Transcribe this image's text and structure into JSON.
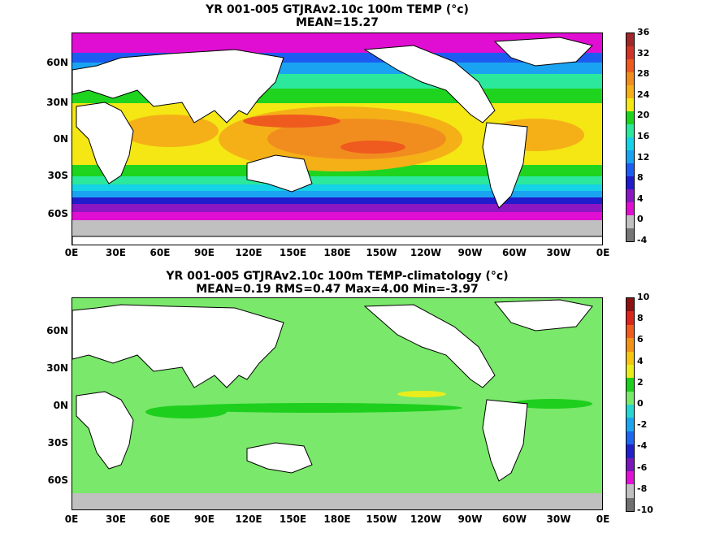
{
  "panel_top": {
    "title_line1": "YR 001-005 GTJRAv2.10c 100m TEMP (°c)",
    "title_line2": "MEAN=15.27",
    "colorbar_labels": [
      "36",
      "32",
      "28",
      "24",
      "20",
      "16",
      "12",
      "8",
      "4",
      "0",
      "-4"
    ],
    "colors": [
      "#a0282b",
      "#cf3526",
      "#ef5a1e",
      "#f18d1e",
      "#f5b017",
      "#f4e714",
      "#1fd41f",
      "#2be89c",
      "#16d2e6",
      "#1aa3f1",
      "#1d5cf0",
      "#1f1ccc",
      "#8a17c2",
      "#e00ed2",
      "#c0c0c0",
      "#767676"
    ]
  },
  "panel_bottom": {
    "title_line1": "YR 001-005 GTJRAv2.10c 100m TEMP-climatology (°c)",
    "title_line2": "MEAN=0.19   RMS=0.47   Max=4.00   Min=-3.97",
    "colorbar_labels": [
      "10",
      "8",
      "6",
      "4",
      "2",
      "0",
      "-2",
      "-4",
      "-6",
      "-8",
      "-10"
    ],
    "colors": [
      "#8c1212",
      "#d9271e",
      "#ee5d1d",
      "#f29318",
      "#f5c512",
      "#eaed1b",
      "#1ecf1e",
      "#7ae86a",
      "#27d6d0",
      "#1ca6ee",
      "#1d66ef",
      "#2121c9",
      "#7a17b8",
      "#e310d6",
      "#c0c0c0",
      "#707070"
    ]
  },
  "lat_labels": [
    "60N",
    "30N",
    "0N",
    "30S",
    "60S"
  ],
  "lon_labels": [
    "0E",
    "30E",
    "60E",
    "90E",
    "120E",
    "150E",
    "180E",
    "150W",
    "120W",
    "90W",
    "60W",
    "30W",
    "0E"
  ]
}
